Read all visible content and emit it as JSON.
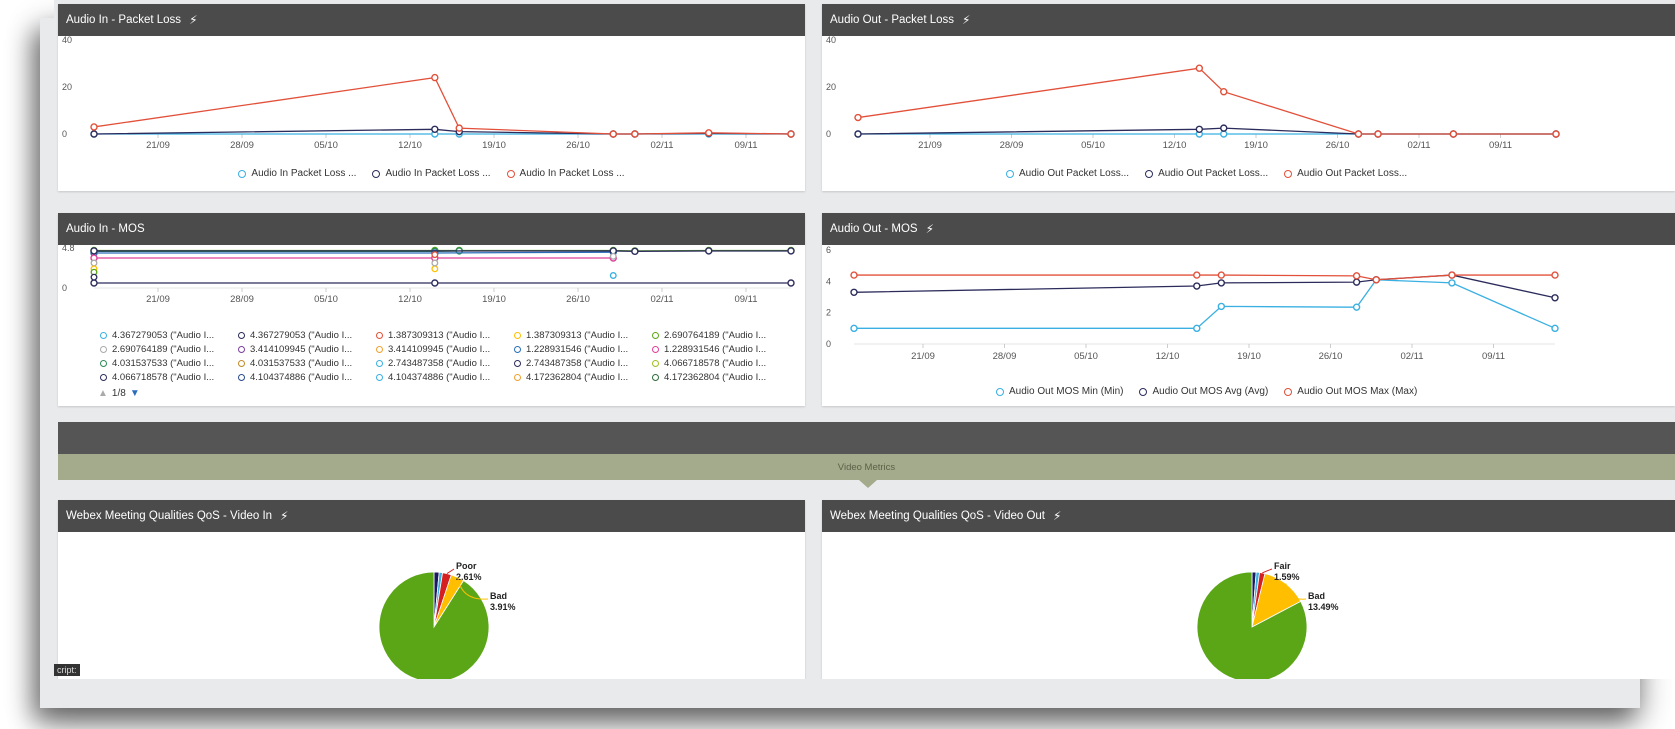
{
  "panels": {
    "audio_in_loss": {
      "title": "Audio In - Packet Loss"
    },
    "audio_out_loss": {
      "title": "Audio Out - Packet Loss"
    },
    "audio_in_mos": {
      "title": "Audio In - MOS"
    },
    "audio_out_mos": {
      "title": "Audio Out - MOS"
    },
    "video_in": {
      "title": "Webex Meeting Qualities QoS - Video In"
    },
    "video_out": {
      "title": "Webex Meeting Qualities QoS - Video Out"
    }
  },
  "section": {
    "label": "Video Metrics"
  },
  "pager": {
    "label": "1/8"
  },
  "corner": {
    "label": "cript:"
  },
  "icons": {
    "lightning": "lightning-icon",
    "pager_up": "triangle-up-icon",
    "pager_down": "triangle-down-icon"
  },
  "colors": {
    "header": "#4b4b4b",
    "series_blue": "#3ab0e2",
    "series_navy": "#2c2c5c",
    "series_red": "#e2503a",
    "pie_green": "#5aa617",
    "pie_yellow": "#ffbf00",
    "pie_red": "#d42020",
    "pie_navy": "#1a1a5e",
    "band": "#a3ab8c"
  },
  "chart_data": [
    {
      "id": "audio_in_loss",
      "type": "line",
      "title": "Audio In - Packet Loss",
      "x_ticks": [
        "21/09",
        "28/09",
        "05/10",
        "12/10",
        "19/10",
        "26/10",
        "02/11",
        "09/11"
      ],
      "ylim": [
        0,
        40
      ],
      "y_ticks": [
        "0",
        "20",
        "40"
      ],
      "series": [
        {
          "name": "Audio In Packet Loss ...",
          "color": "#3ab0e2",
          "points": [
            [
              0,
              0
            ],
            [
              0.489,
              0
            ],
            [
              0.524,
              0
            ],
            [
              0.745,
              0
            ],
            [
              0.776,
              0
            ],
            [
              0.882,
              0
            ],
            [
              1,
              0
            ]
          ]
        },
        {
          "name": "Audio In Packet Loss ...",
          "color": "#2c2c5c",
          "points": [
            [
              0,
              0
            ],
            [
              0.489,
              2
            ],
            [
              0.524,
              1
            ],
            [
              0.745,
              0
            ],
            [
              0.776,
              0
            ],
            [
              0.882,
              0.3
            ],
            [
              1,
              0
            ]
          ]
        },
        {
          "name": "Audio In Packet Loss ...",
          "color": "#e2503a",
          "points": [
            [
              0,
              3
            ],
            [
              0.489,
              24
            ],
            [
              0.524,
              2.5
            ],
            [
              0.745,
              0
            ],
            [
              0.776,
              0
            ],
            [
              0.882,
              0.5
            ],
            [
              1,
              0
            ]
          ]
        }
      ]
    },
    {
      "id": "audio_out_loss",
      "type": "line",
      "title": "Audio Out - Packet Loss",
      "x_ticks": [
        "21/09",
        "28/09",
        "05/10",
        "12/10",
        "19/10",
        "26/10",
        "02/11",
        "09/11"
      ],
      "ylim": [
        0,
        40
      ],
      "y_ticks": [
        "0",
        "20",
        "40"
      ],
      "series": [
        {
          "name": "Audio Out Packet Loss...",
          "color": "#3ab0e2",
          "points": [
            [
              0,
              0
            ],
            [
              0.489,
              0
            ],
            [
              0.524,
              0
            ],
            [
              0.717,
              0
            ],
            [
              0.745,
              0
            ],
            [
              0.853,
              0
            ],
            [
              1,
              0
            ]
          ]
        },
        {
          "name": "Audio Out Packet Loss...",
          "color": "#2c2c5c",
          "points": [
            [
              0,
              0
            ],
            [
              0.489,
              2
            ],
            [
              0.524,
              2.5
            ],
            [
              0.717,
              0
            ],
            [
              0.745,
              0
            ],
            [
              0.853,
              0
            ],
            [
              1,
              0
            ]
          ]
        },
        {
          "name": "Audio Out Packet Loss...",
          "color": "#e2503a",
          "points": [
            [
              0,
              7
            ],
            [
              0.489,
              28
            ],
            [
              0.524,
              18
            ],
            [
              0.717,
              0
            ],
            [
              0.745,
              0
            ],
            [
              0.853,
              0
            ],
            [
              1,
              0
            ]
          ]
        }
      ]
    },
    {
      "id": "audio_in_mos",
      "type": "line",
      "title": "Audio In - MOS",
      "x_ticks": [
        "21/09",
        "28/09",
        "05/10",
        "12/10",
        "19/10",
        "26/10",
        "02/11",
        "09/11"
      ],
      "ylim": [
        0,
        4.8
      ],
      "y_ticks": [
        "0",
        "4.8"
      ],
      "legend_items": [
        {
          "label": "4.367279053 (\"Audio I...",
          "color": "#3ab0e2"
        },
        {
          "label": "4.367279053 (\"Audio I...",
          "color": "#2c2c5c"
        },
        {
          "label": "1.387309313 (\"Audio I...",
          "color": "#e2503a"
        },
        {
          "label": "1.387309313 (\"Audio I...",
          "color": "#ffbf00"
        },
        {
          "label": "2.690764189 (\"Audio I...",
          "color": "#5aa617"
        },
        {
          "label": "2.690764189 (\"Audio I...",
          "color": "#aaaaaa"
        },
        {
          "label": "3.414109945 (\"Audio I...",
          "color": "#7b3f9e"
        },
        {
          "label": "3.414109945 (\"Audio I...",
          "color": "#f0a030"
        },
        {
          "label": "1.228931546 (\"Audio I...",
          "color": "#2a6ebb"
        },
        {
          "label": "1.228931546 (\"Audio I...",
          "color": "#e0409a"
        },
        {
          "label": "4.031537533 (\"Audio I...",
          "color": "#2e8b57"
        },
        {
          "label": "4.031537533 (\"Audio I...",
          "color": "#c28a2a"
        },
        {
          "label": "2.743487358 (\"Audio I...",
          "color": "#3ab0e2"
        },
        {
          "label": "2.743487358 (\"Audio I...",
          "color": "#2c2c5c"
        },
        {
          "label": "4.066718578 (\"Audio I...",
          "color": "#a0c020"
        },
        {
          "label": "4.066718578 (\"Audio I...",
          "color": "#2c2c5c"
        },
        {
          "label": "4.104374886 (\"Audio I...",
          "color": "#2a4a8e"
        },
        {
          "label": "4.104374886 (\"Audio I...",
          "color": "#3ab0e2"
        },
        {
          "label": "4.172362804 (\"Audio I...",
          "color": "#f0a030"
        },
        {
          "label": "4.172362804 (\"Audio I...",
          "color": "#2e6b3a"
        }
      ],
      "series": [
        {
          "color": "#5aa617",
          "points": [
            [
              0,
              4.5
            ],
            [
              0.489,
              4.5
            ],
            [
              0.524,
              4.5
            ],
            [
              0.745,
              4.5
            ],
            [
              0.776,
              4.45
            ],
            [
              0.882,
              4.5
            ],
            [
              1,
              4.5
            ]
          ]
        },
        {
          "color": "#2e8b57",
          "points": [
            [
              0,
              4.4
            ],
            [
              0.489,
              4.4
            ],
            [
              0.524,
              4.45
            ]
          ]
        },
        {
          "color": "#2a6ebb",
          "points": [
            [
              0,
              4.2
            ],
            [
              0.489,
              4.2
            ],
            [
              0.745,
              4.3
            ]
          ]
        },
        {
          "color": "#e0409a",
          "points": [
            [
              0,
              3.6
            ],
            [
              0.489,
              3.6
            ],
            [
              0.745,
              3.6
            ]
          ]
        },
        {
          "color": "#2c2c5c",
          "points": [
            [
              0,
              0.6
            ],
            [
              0.489,
              0.6
            ],
            [
              1,
              0.6
            ]
          ]
        },
        {
          "color": "#2c2c5c",
          "points": [
            [
              0,
              4.45
            ],
            [
              0.745,
              4.45
            ],
            [
              0.776,
              4.4
            ],
            [
              0.882,
              4.45
            ],
            [
              1,
              4.45
            ]
          ]
        }
      ],
      "extra_points": [
        {
          "x": 0,
          "y": 3.0,
          "color": "#aaaaaa"
        },
        {
          "x": 0,
          "y": 2.3,
          "color": "#ffbf00"
        },
        {
          "x": 0,
          "y": 1.9,
          "color": "#5aa617"
        },
        {
          "x": 0,
          "y": 1.3,
          "color": "#2c2c5c"
        },
        {
          "x": 0.489,
          "y": 4.0,
          "color": "#e2503a"
        },
        {
          "x": 0.489,
          "y": 2.3,
          "color": "#ffbf00"
        },
        {
          "x": 0.489,
          "y": 3.0,
          "color": "#aaaaaa"
        },
        {
          "x": 0.745,
          "y": 1.5,
          "color": "#3ab0e2"
        },
        {
          "x": 0.745,
          "y": 3.8,
          "color": "#aaaaaa"
        }
      ]
    },
    {
      "id": "audio_out_mos",
      "type": "line",
      "title": "Audio Out - MOS",
      "x_ticks": [
        "21/09",
        "28/09",
        "05/10",
        "12/10",
        "19/10",
        "26/10",
        "02/11",
        "09/11"
      ],
      "ylim": [
        0,
        6
      ],
      "y_ticks": [
        "0",
        "2",
        "4",
        "6"
      ],
      "series": [
        {
          "name": "Audio Out MOS Min (Min)",
          "color": "#3ab0e2",
          "points": [
            [
              0,
              1
            ],
            [
              0.489,
              1
            ],
            [
              0.524,
              2.4
            ],
            [
              0.717,
              2.35
            ],
            [
              0.745,
              4.1
            ],
            [
              0.853,
              3.9
            ],
            [
              1,
              1
            ]
          ]
        },
        {
          "name": "Audio Out MOS Avg (Avg)",
          "color": "#2c2c5c",
          "points": [
            [
              0,
              3.3
            ],
            [
              0.489,
              3.7
            ],
            [
              0.524,
              3.9
            ],
            [
              0.717,
              3.95
            ],
            [
              0.745,
              4.1
            ],
            [
              0.853,
              4.4
            ],
            [
              1,
              2.95
            ]
          ]
        },
        {
          "name": "Audio Out MOS Max (Max)",
          "color": "#e2503a",
          "points": [
            [
              0,
              4.4
            ],
            [
              0.489,
              4.4
            ],
            [
              0.524,
              4.4
            ],
            [
              0.717,
              4.35
            ],
            [
              0.745,
              4.1
            ],
            [
              0.853,
              4.4
            ],
            [
              1,
              4.4
            ]
          ]
        }
      ]
    },
    {
      "id": "video_in",
      "type": "pie",
      "title": "Webex Meeting Qualities QoS - Video In",
      "slices": [
        {
          "label": "Poor",
          "value": 2.61,
          "color": "#d42020"
        },
        {
          "label": "Bad",
          "value": 3.91,
          "color": "#ffbf00"
        },
        {
          "label": "",
          "value": 1.5,
          "color": "#1a1a5e"
        },
        {
          "label": "",
          "value": 1.0,
          "color": "#3ab0e2"
        },
        {
          "label": "",
          "value": 90.98,
          "color": "#5aa617"
        }
      ]
    },
    {
      "id": "video_out",
      "type": "pie",
      "title": "Webex Meeting Qualities QoS - Video Out",
      "slices": [
        {
          "label": "Fair",
          "value": 1.59,
          "color": "#d42020"
        },
        {
          "label": "Bad",
          "value": 13.49,
          "color": "#ffbf00"
        },
        {
          "label": "",
          "value": 1.2,
          "color": "#1a1a5e"
        },
        {
          "label": "",
          "value": 1.0,
          "color": "#3ab0e2"
        },
        {
          "label": "",
          "value": 82.72,
          "color": "#5aa617"
        }
      ]
    }
  ]
}
